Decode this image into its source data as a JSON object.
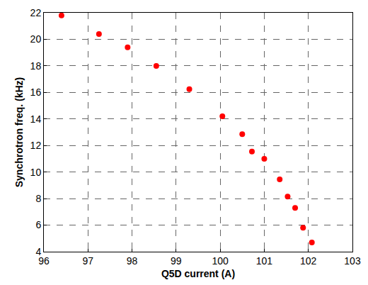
{
  "chart_data": {
    "type": "scatter",
    "x_label": "Q5D current (A)",
    "y_label": "Synchrotron freq. (kHz)",
    "x": [
      96.4,
      97.25,
      97.9,
      98.55,
      99.3,
      100.05,
      100.5,
      100.72,
      101.0,
      101.35,
      101.53,
      101.7,
      101.88,
      102.08
    ],
    "values": [
      21.8,
      20.4,
      19.4,
      18.0,
      16.25,
      14.2,
      12.85,
      11.55,
      11.0,
      9.45,
      8.15,
      7.3,
      5.8,
      4.7
    ],
    "color": "#ff0000",
    "marker": "circle",
    "xlim": [
      96,
      103
    ],
    "xticks": [
      96,
      97,
      98,
      99,
      100,
      101,
      102,
      103
    ],
    "ylim": [
      4,
      22
    ],
    "yticks": [
      4,
      6,
      8,
      10,
      12,
      14,
      16,
      18,
      20,
      22
    ],
    "grid": true
  }
}
